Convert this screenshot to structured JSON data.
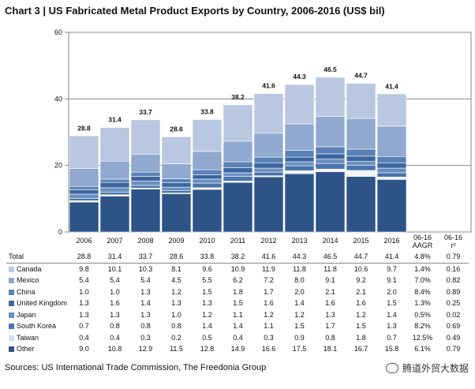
{
  "title": "Chart 3 | US Fabricated Metal Product Exports by Country, 2006-2016 (US$ bil)",
  "source": "Sources: US International Trade Commission, The Freedonia Group",
  "watermark": "腾道外贸大数据",
  "chart_data": {
    "type": "bar",
    "stacked": true,
    "ylim": [
      0,
      60
    ],
    "yticks": [
      0,
      20,
      40,
      60
    ],
    "grid": true,
    "categories": [
      "2006",
      "2007",
      "2008",
      "2009",
      "2010",
      "2011",
      "2012",
      "2013",
      "2014",
      "2015",
      "2016"
    ],
    "totals": [
      28.8,
      31.4,
      33.7,
      28.6,
      33.8,
      38.2,
      41.6,
      44.3,
      46.5,
      44.7,
      41.4
    ],
    "total_labels": [
      "28.8",
      "31.4",
      "33.7",
      "28.6",
      "33.8",
      "38.2",
      "41.6",
      "44.3",
      "46.5",
      "44.7",
      "41.4"
    ],
    "series": [
      {
        "name": "Other",
        "color": "#2e5487",
        "values": [
          9.0,
          10.8,
          12.9,
          11.5,
          12.8,
          14.9,
          16.6,
          17.5,
          18.1,
          16.7,
          15.8
        ]
      },
      {
        "name": "Taiwan",
        "color": "#f2f4f8",
        "values": [
          0.4,
          0.4,
          0.3,
          0.2,
          0.5,
          0.4,
          0.3,
          0.9,
          0.8,
          1.8,
          0.7
        ]
      },
      {
        "name": "South Korea",
        "color": "#4a74aa",
        "values": [
          0.7,
          0.8,
          0.8,
          0.8,
          1.4,
          1.4,
          1.1,
          1.5,
          1.7,
          1.5,
          1.3
        ]
      },
      {
        "name": "Japan",
        "color": "#6a8fc0",
        "values": [
          1.3,
          1.3,
          1.3,
          1.0,
          1.2,
          1.1,
          1.2,
          1.2,
          1.3,
          1.2,
          1.4
        ]
      },
      {
        "name": "United Kingdom",
        "color": "#3d66a0",
        "values": [
          1.3,
          1.6,
          1.4,
          1.3,
          1.3,
          1.5,
          1.6,
          1.4,
          1.6,
          1.6,
          1.5
        ]
      },
      {
        "name": "China",
        "color": "#5b82b8",
        "values": [
          1.0,
          1.0,
          1.3,
          1.2,
          1.5,
          1.8,
          1.7,
          2.0,
          2.1,
          2.1,
          2.0
        ]
      },
      {
        "name": "Mexico",
        "color": "#91a9ce",
        "values": [
          5.4,
          5.4,
          5.4,
          4.5,
          5.5,
          6.2,
          7.2,
          8.0,
          9.1,
          9.2,
          9.1
        ]
      },
      {
        "name": "Canada",
        "color": "#b9c7e0",
        "values": [
          9.8,
          10.1,
          10.3,
          8.1,
          9.6,
          10.9,
          11.9,
          11.8,
          11.8,
          10.6,
          9.7
        ]
      }
    ],
    "table": {
      "headers": [
        "2006",
        "2007",
        "2008",
        "2009",
        "2010",
        "2011",
        "2012",
        "2013",
        "2014",
        "2015",
        "2016",
        "06-16 AAGR",
        "06-16 r²"
      ],
      "header_line1": [
        "2006",
        "2007",
        "2008",
        "2009",
        "2010",
        "2011",
        "2012",
        "2013",
        "2014",
        "2015",
        "2016",
        "06-16",
        "06-16"
      ],
      "header_line2": [
        "",
        "",
        "",
        "",
        "",
        "",
        "",
        "",
        "",
        "",
        "",
        "AAGR",
        "r²"
      ],
      "rows": [
        {
          "label": "Total",
          "swatch": "",
          "cells": [
            "28.8",
            "31.4",
            "33.7",
            "28.6",
            "33.8",
            "38.2",
            "41.6",
            "44.3",
            "46.5",
            "44.7",
            "41.4",
            "4.8%",
            "0.79"
          ]
        },
        {
          "label": "Canada",
          "swatch": "#b9c7e0",
          "cells": [
            "9.8",
            "10.1",
            "10.3",
            "8.1",
            "9.6",
            "10.9",
            "11.9",
            "11.8",
            "11.8",
            "10.6",
            "9.7",
            "1.4%",
            "0.16"
          ]
        },
        {
          "label": "Mexico",
          "swatch": "#91a9ce",
          "cells": [
            "5.4",
            "5.4",
            "5.4",
            "4.5",
            "5.5",
            "6.2",
            "7.2",
            "8.0",
            "9.1",
            "9.2",
            "9.1",
            "7.0%",
            "0.82"
          ]
        },
        {
          "label": "China",
          "swatch": "#5b82b8",
          "cells": [
            "1.0",
            "1.0",
            "1.3",
            "1.2",
            "1.5",
            "1.8",
            "1.7",
            "2.0",
            "2.1",
            "2.1",
            "2.0",
            "8.4%",
            "0.89"
          ]
        },
        {
          "label": "United Kingdom",
          "swatch": "#3d66a0",
          "cells": [
            "1.3",
            "1.6",
            "1.4",
            "1.3",
            "1.3",
            "1.5",
            "1.6",
            "1.4",
            "1.6",
            "1.6",
            "1.5",
            "1.3%",
            "0.25"
          ]
        },
        {
          "label": "Japan",
          "swatch": "#6a8fc0",
          "cells": [
            "1.3",
            "1.3",
            "1.3",
            "1.0",
            "1.2",
            "1.1",
            "1.2",
            "1.2",
            "1.3",
            "1.2",
            "1.4",
            "0.5%",
            "0.02"
          ]
        },
        {
          "label": "South Korea",
          "swatch": "#4a74aa",
          "cells": [
            "0.7",
            "0.8",
            "0.8",
            "0.8",
            "1.4",
            "1.4",
            "1.1",
            "1.5",
            "1.7",
            "1.5",
            "1.3",
            "8.2%",
            "0.69"
          ]
        },
        {
          "label": "Taiwan",
          "swatch": "#d6deec",
          "cells": [
            "0.4",
            "0.4",
            "0.3",
            "0.2",
            "0.5",
            "0.4",
            "0.3",
            "0.9",
            "0.8",
            "1.8",
            "0.7",
            "12.5%",
            "0.49"
          ]
        },
        {
          "label": "Other",
          "swatch": "#2e5487",
          "cells": [
            "9.0",
            "10.8",
            "12.9",
            "11.5",
            "12.8",
            "14.9",
            "16.6",
            "17.5",
            "18.1",
            "16.7",
            "15.8",
            "6.1%",
            "0.79"
          ]
        }
      ]
    }
  }
}
